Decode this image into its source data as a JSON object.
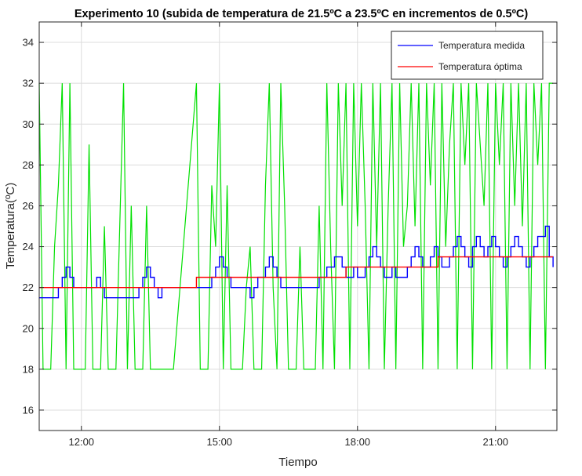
{
  "chart_data": {
    "type": "line",
    "title": "Experimento 10 (subida de temperatura de 21.5ºC a 23.5ºC en incrementos de 0.5ºC)",
    "xlabel": "Tiempo",
    "ylabel": "Temperatura(ºC)",
    "xlim": [
      "11:05",
      "22:20"
    ],
    "ylim": [
      15,
      35
    ],
    "x_ticks": [
      "12:00",
      "15:00",
      "18:00",
      "21:00"
    ],
    "y_ticks": [
      16,
      18,
      20,
      22,
      24,
      26,
      28,
      30,
      32,
      34
    ],
    "grid": true,
    "legend_position": "top-right",
    "series": [
      {
        "name": "Temperatura medida",
        "color": "#0000ff",
        "x": [
          "11:05",
          "11:25",
          "11:30",
          "11:35",
          "11:40",
          "11:45",
          "11:50",
          "11:55",
          "12:00",
          "12:05",
          "12:20",
          "12:25",
          "12:30",
          "12:35",
          "12:45",
          "13:00",
          "13:10",
          "13:15",
          "13:20",
          "13:25",
          "13:30",
          "13:35",
          "13:40",
          "13:45",
          "13:50",
          "13:55",
          "14:00",
          "14:25",
          "14:30",
          "14:45",
          "14:50",
          "14:55",
          "15:00",
          "15:05",
          "15:10",
          "15:15",
          "15:20",
          "15:25",
          "15:30",
          "15:40",
          "15:45",
          "15:50",
          "16:00",
          "16:05",
          "16:10",
          "16:15",
          "16:20",
          "16:25",
          "16:30",
          "16:35",
          "16:40",
          "16:50",
          "17:00",
          "17:10",
          "17:20",
          "17:30",
          "17:40",
          "17:45",
          "17:50",
          "17:55",
          "18:00",
          "18:05",
          "18:10",
          "18:15",
          "18:20",
          "18:25",
          "18:30",
          "18:35",
          "18:40",
          "18:45",
          "18:50",
          "19:00",
          "19:05",
          "19:10",
          "19:15",
          "19:20",
          "19:25",
          "19:30",
          "19:35",
          "19:40",
          "19:45",
          "19:50",
          "20:00",
          "20:05",
          "20:10",
          "20:15",
          "20:20",
          "20:25",
          "20:30",
          "20:35",
          "20:40",
          "20:45",
          "20:50",
          "20:55",
          "21:00",
          "21:05",
          "21:10",
          "21:15",
          "21:20",
          "21:25",
          "21:30",
          "21:35",
          "21:40",
          "21:45",
          "21:50",
          "21:55",
          "22:00",
          "22:05",
          "22:10",
          "22:15"
        ],
        "values": [
          21.5,
          21.5,
          22,
          22.5,
          23,
          22.5,
          22,
          22,
          22,
          22,
          22.5,
          22,
          21.5,
          21.5,
          21.5,
          21.5,
          21.5,
          22,
          22.5,
          23,
          22.5,
          22,
          21.5,
          22,
          22,
          22,
          22,
          22,
          22,
          22,
          22.5,
          23,
          23.5,
          23,
          22.5,
          22,
          22,
          22,
          22,
          21.5,
          22,
          22.5,
          23,
          23.5,
          23,
          22.5,
          22,
          22,
          22,
          22,
          22,
          22,
          22,
          22.5,
          23,
          23.5,
          23,
          22.5,
          22.5,
          23,
          22.5,
          22.5,
          23,
          23.5,
          24,
          23.5,
          23,
          22.5,
          22.5,
          23,
          22.5,
          22.5,
          23,
          23.5,
          24,
          23.5,
          23,
          23,
          23.5,
          24,
          23.5,
          23,
          23.5,
          24,
          24.5,
          24,
          23.5,
          23,
          24,
          24.5,
          24,
          23.5,
          24,
          24.5,
          24,
          23.5,
          23,
          23.5,
          24,
          24.5,
          24,
          23.5,
          23,
          23.5,
          24,
          24.5,
          24.5,
          25,
          23.5,
          23
        ]
      },
      {
        "name": "Temperatura óptima",
        "color": "#ff0000",
        "x": [
          "11:05",
          "14:30",
          "14:30",
          "17:45",
          "17:45",
          "19:45",
          "19:45",
          "22:15"
        ],
        "values": [
          22,
          22,
          22.5,
          22.5,
          23,
          23,
          23.5,
          23.5
        ]
      },
      {
        "color": "#00e000",
        "x": [
          "11:05",
          "11:10",
          "11:15",
          "11:20",
          "11:25",
          "11:30",
          "11:35",
          "11:40",
          "11:45",
          "11:50",
          "11:55",
          "12:00",
          "12:05",
          "12:10",
          "12:15",
          "12:20",
          "12:25",
          "12:30",
          "12:35",
          "12:40",
          "12:45",
          "12:50",
          "12:55",
          "13:00",
          "13:05",
          "13:10",
          "13:15",
          "13:20",
          "13:25",
          "13:30",
          "13:35",
          "13:40",
          "13:45",
          "13:50",
          "13:55",
          "14:00",
          "14:30",
          "14:35",
          "14:40",
          "14:45",
          "14:50",
          "14:55",
          "15:00",
          "15:05",
          "15:10",
          "15:15",
          "15:20",
          "15:25",
          "15:30",
          "15:35",
          "15:40",
          "15:45",
          "15:50",
          "15:55",
          "16:00",
          "16:05",
          "16:10",
          "16:15",
          "16:20",
          "16:25",
          "16:30",
          "16:35",
          "16:40",
          "16:45",
          "16:50",
          "16:55",
          "17:00",
          "17:05",
          "17:10",
          "17:15",
          "17:20",
          "17:25",
          "17:30",
          "17:35",
          "17:40",
          "17:45",
          "17:50",
          "17:55",
          "18:00",
          "18:05",
          "18:10",
          "18:15",
          "18:20",
          "18:25",
          "18:30",
          "18:35",
          "18:40",
          "18:45",
          "18:50",
          "18:55",
          "19:00",
          "19:05",
          "19:10",
          "19:15",
          "19:20",
          "19:25",
          "19:30",
          "19:35",
          "19:40",
          "19:45",
          "19:50",
          "19:55",
          "20:00",
          "20:05",
          "20:10",
          "20:15",
          "20:20",
          "20:25",
          "20:30",
          "20:35",
          "20:40",
          "20:45",
          "20:50",
          "20:55",
          "21:00",
          "21:05",
          "21:10",
          "21:15",
          "21:20",
          "21:25",
          "21:30",
          "21:35",
          "21:40",
          "21:45",
          "21:50",
          "21:55",
          "22:00",
          "22:05",
          "22:10",
          "22:15"
        ],
        "values": [
          32,
          18,
          18,
          18,
          24,
          27,
          32,
          18,
          32,
          18,
          18,
          18,
          18,
          29,
          18,
          18,
          18,
          25,
          18,
          18,
          18,
          25,
          32,
          18,
          26,
          18,
          18,
          18,
          26,
          18,
          18,
          18,
          18,
          18,
          18,
          18,
          32,
          18,
          18,
          18,
          27,
          24,
          32,
          18,
          27,
          18,
          18,
          18,
          18,
          22,
          24,
          18,
          18,
          18,
          27,
          32,
          22,
          18,
          32,
          26,
          18,
          18,
          18,
          24,
          18,
          18,
          18,
          18,
          26,
          18,
          32,
          24,
          18,
          32,
          26,
          32,
          18,
          32,
          25,
          32,
          26,
          18,
          32,
          24,
          32,
          18,
          26,
          32,
          18,
          32,
          24,
          26,
          32,
          25,
          32,
          18,
          32,
          27,
          32,
          18,
          32,
          24,
          29,
          32,
          18,
          32,
          28,
          32,
          18,
          32,
          29,
          26,
          32,
          18,
          32,
          28,
          32,
          18,
          32,
          26,
          32,
          25,
          32,
          18,
          32,
          28,
          32,
          18,
          32,
          32
        ]
      }
    ]
  }
}
